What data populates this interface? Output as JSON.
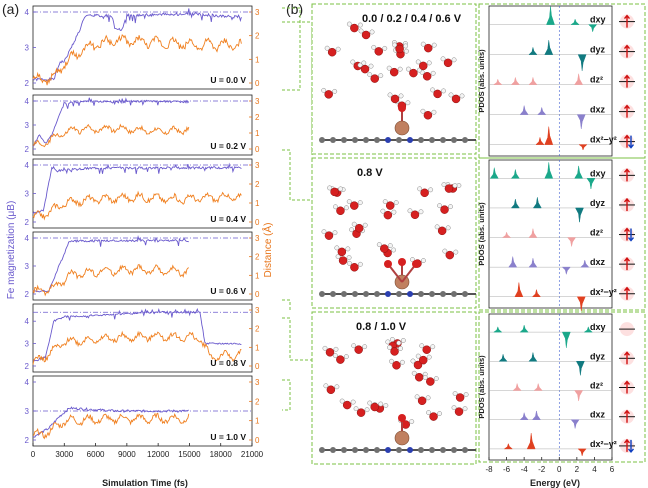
{
  "panel_a": {
    "label": "(a)",
    "ylabel_left": "Fe magnetization (μB)",
    "ylabel_right": "Distance (Å)",
    "xlabel": "Simulation Time (fs)",
    "x_ticks": [
      "0",
      "3000",
      "6000",
      "9000",
      "12000",
      "15000",
      "18000",
      "21000"
    ],
    "colors": {
      "magnetization": "#6a5acd",
      "distance": "#f08020"
    }
  },
  "panel_b": {
    "label": "(b)",
    "pdos_ylabel": "PDOS (abs. units)",
    "energy_xlabel": "Energy (eV)",
    "energy_ticks": [
      "-8",
      "-6",
      "-4",
      "-2",
      "0",
      "2",
      "4",
      "6"
    ],
    "orbitals": [
      "dxy",
      "dyz",
      "dz²",
      "dxz",
      "dx²−y²"
    ]
  },
  "chart_data": [
    {
      "type": "line",
      "title": "U = 0.0 V",
      "xlabel": "Simulation Time (fs)",
      "ylabel": "Fe magnetization (μB)",
      "y2label": "Distance (Å)",
      "xlim": [
        0,
        21000
      ],
      "ylim": [
        2,
        4
      ],
      "y2lim": [
        0,
        3
      ],
      "series": [
        {
          "name": "magnetization",
          "x": [
            0,
            2000,
            2600,
            3000,
            4500,
            5000,
            7500,
            8000,
            8500,
            9000,
            15000,
            20000
          ],
          "values": [
            2.1,
            2.1,
            2.6,
            2.6,
            3.5,
            3.9,
            3.9,
            3.5,
            3.5,
            3.9,
            3.95,
            3.85
          ]
        },
        {
          "name": "distance",
          "x": [
            0,
            2000,
            3000,
            5000,
            8000,
            12000,
            16000,
            20000
          ],
          "values": [
            0.1,
            0.2,
            0.8,
            1.5,
            1.8,
            1.7,
            1.6,
            1.6
          ]
        }
      ],
      "reference_line": 4
    },
    {
      "type": "line",
      "title": "U = 0.2 V",
      "xlim": [
        0,
        21000
      ],
      "ylim": [
        2,
        4
      ],
      "y2lim": [
        0,
        3
      ],
      "series": [
        {
          "name": "magnetization",
          "x": [
            0,
            600,
            1200,
            1800,
            2400,
            3000,
            5000,
            8000,
            11000,
            15000
          ],
          "values": [
            2.1,
            2.6,
            2.2,
            2.6,
            3.3,
            3.9,
            4.0,
            3.95,
            4.0,
            3.95
          ]
        },
        {
          "name": "distance",
          "x": [
            0,
            1000,
            2500,
            4000,
            8000,
            12000,
            15000
          ],
          "values": [
            0.2,
            0.3,
            0.9,
            1.2,
            1.3,
            1.1,
            1.2
          ]
        }
      ],
      "reference_line": 4
    },
    {
      "type": "line",
      "title": "U = 0.4 V",
      "xlim": [
        0,
        21000
      ],
      "ylim": [
        2,
        4
      ],
      "y2lim": [
        0,
        3
      ],
      "series": [
        {
          "name": "magnetization",
          "x": [
            0,
            1000,
            1800,
            2500,
            6000,
            12000,
            18000,
            20000
          ],
          "values": [
            2.3,
            2.4,
            3.9,
            3.8,
            3.9,
            3.9,
            3.9,
            3.9
          ]
        },
        {
          "name": "distance",
          "x": [
            0,
            1500,
            3000,
            6000,
            10000,
            14000,
            18000,
            20000
          ],
          "values": [
            0.2,
            0.5,
            1.0,
            1.2,
            1.3,
            1.2,
            1.3,
            1.3
          ]
        }
      ],
      "reference_line": 4
    },
    {
      "type": "line",
      "title": "U = 0.6 V",
      "xlim": [
        0,
        21000
      ],
      "ylim": [
        2,
        4
      ],
      "y2lim": [
        0,
        3
      ],
      "series": [
        {
          "name": "magnetization",
          "x": [
            0,
            1500,
            2500,
            3500,
            6000,
            10000,
            15000
          ],
          "values": [
            2.1,
            2.1,
            3.0,
            3.9,
            3.9,
            3.9,
            3.9
          ]
        },
        {
          "name": "distance",
          "x": [
            0,
            2000,
            3500,
            6000,
            10000,
            15000
          ],
          "values": [
            0.1,
            0.3,
            1.0,
            1.2,
            1.3,
            1.2
          ]
        }
      ],
      "reference_line": 4
    },
    {
      "type": "line",
      "title": "U = 0.8 V",
      "xlim": [
        0,
        21000
      ],
      "ylim": [
        2,
        4.5
      ],
      "y2lim": [
        0,
        3
      ],
      "series": [
        {
          "name": "magnetization",
          "x": [
            0,
            1200,
            2000,
            3000,
            8000,
            12000,
            16000,
            16500,
            20000
          ],
          "values": [
            2.2,
            2.4,
            4.0,
            4.2,
            4.3,
            4.4,
            4.4,
            3.0,
            3.0
          ]
        },
        {
          "name": "distance",
          "x": [
            0,
            1500,
            3000,
            8000,
            12000,
            16000,
            17000,
            20000
          ],
          "values": [
            0.2,
            0.6,
            1.3,
            1.5,
            1.6,
            1.5,
            0.5,
            0.6
          ]
        }
      ],
      "reference_line": 4.4
    },
    {
      "type": "line",
      "title": "U = 1.0 V",
      "xlim": [
        0,
        21000
      ],
      "ylim": [
        2,
        4
      ],
      "y2lim": [
        0,
        3
      ],
      "series": [
        {
          "name": "magnetization",
          "x": [
            0,
            1500,
            2500,
            3500,
            8000,
            15000
          ],
          "values": [
            2.1,
            2.4,
            2.8,
            3.1,
            3.0,
            3.0
          ]
        },
        {
          "name": "distance",
          "x": [
            0,
            1500,
            3000,
            8000,
            15000
          ],
          "values": [
            0.2,
            0.4,
            1.0,
            1.1,
            1.1
          ]
        }
      ],
      "reference_line": 3
    }
  ],
  "structures": [
    {
      "label": "0.0 / 0.2 / 0.4 / 0.6 V"
    },
    {
      "label": "0.8 V"
    },
    {
      "label": "0.8 / 1.0 V"
    }
  ],
  "pdos_groups": [
    {
      "labels": [
        "dxy",
        "dyz",
        "dz²",
        "dxz",
        "dx²−y²"
      ]
    },
    {
      "labels": [
        "dxy",
        "dyz",
        "dz²",
        "dxz",
        "dx²−y²"
      ]
    },
    {
      "labels": [
        "dxy",
        "dyz",
        "dz²",
        "dxz",
        "dx²−y²"
      ]
    }
  ]
}
